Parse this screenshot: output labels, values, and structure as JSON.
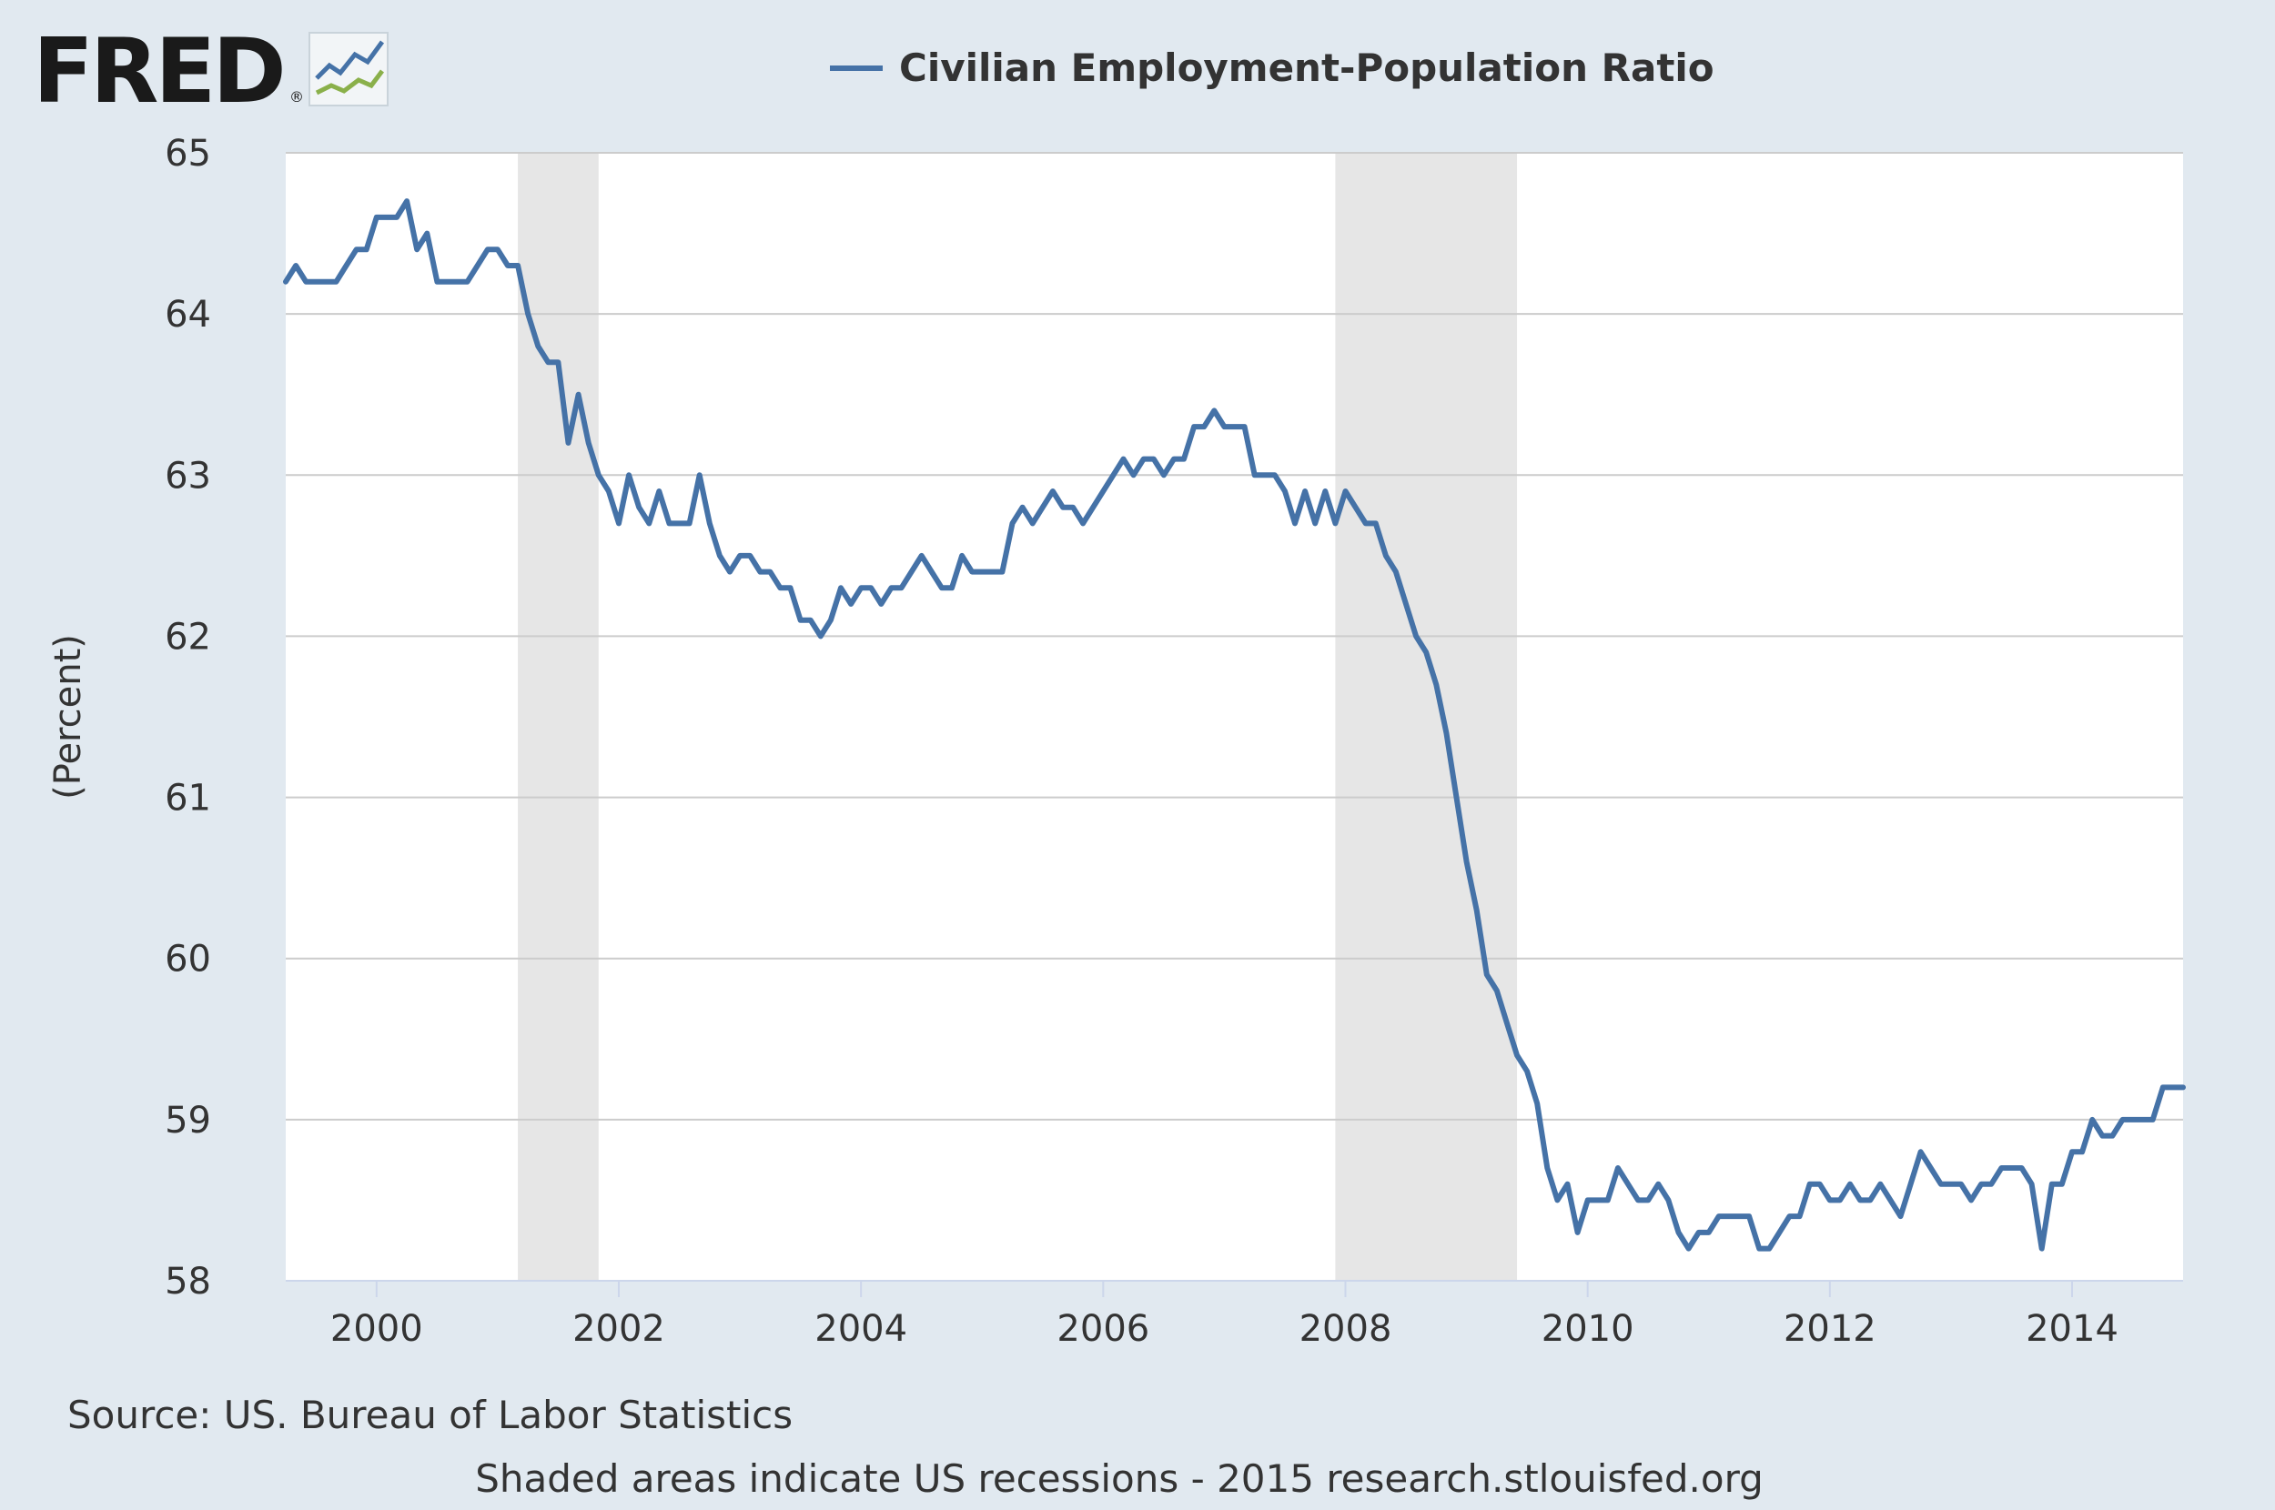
{
  "logo": {
    "text": "FRED",
    "registered": "®",
    "icon": "fred-sparkline-icon"
  },
  "source_text": "Source: US. Bureau of Labor Statistics",
  "footer_text": "Shaded areas indicate US recessions - 2015 research.stlouisfed.org",
  "colors": {
    "background": "#e1e9f0",
    "plot_bg": "#ffffff",
    "series": "#4572a7",
    "recession": "#e6e6e6",
    "grid": "#cccccc"
  },
  "chart_data": {
    "type": "line",
    "title": "",
    "xlabel": "",
    "ylabel": "(Percent)",
    "ylim": [
      58,
      65
    ],
    "xlim": [
      "1999-04",
      "2014-12"
    ],
    "y_ticks": [
      58,
      59,
      60,
      61,
      62,
      63,
      64,
      65
    ],
    "x_ticks": [
      "2000",
      "2002",
      "2004",
      "2006",
      "2008",
      "2010",
      "2012",
      "2014"
    ],
    "grid": true,
    "legend_position": "top",
    "recessions": [
      {
        "start": "2001-03",
        "end": "2001-11"
      },
      {
        "start": "2007-12",
        "end": "2009-06"
      }
    ],
    "series": [
      {
        "name": "Civilian Employment-Population Ratio",
        "start": "1999-04",
        "frequency": "monthly",
        "values": [
          64.2,
          64.3,
          64.2,
          64.2,
          64.2,
          64.2,
          64.3,
          64.4,
          64.4,
          64.6,
          64.6,
          64.6,
          64.7,
          64.4,
          64.5,
          64.2,
          64.2,
          64.2,
          64.2,
          64.3,
          64.4,
          64.4,
          64.3,
          64.3,
          64.0,
          63.8,
          63.7,
          63.7,
          63.2,
          63.5,
          63.2,
          63.0,
          62.9,
          62.7,
          63.0,
          62.8,
          62.7,
          62.9,
          62.7,
          62.7,
          62.7,
          63.0,
          62.7,
          62.5,
          62.4,
          62.5,
          62.5,
          62.4,
          62.4,
          62.3,
          62.3,
          62.1,
          62.1,
          62.0,
          62.1,
          62.3,
          62.2,
          62.3,
          62.3,
          62.2,
          62.3,
          62.3,
          62.4,
          62.5,
          62.4,
          62.3,
          62.3,
          62.5,
          62.4,
          62.4,
          62.4,
          62.4,
          62.7,
          62.8,
          62.7,
          62.8,
          62.9,
          62.8,
          62.8,
          62.7,
          62.8,
          62.9,
          63.0,
          63.1,
          63.0,
          63.1,
          63.1,
          63.0,
          63.1,
          63.1,
          63.3,
          63.3,
          63.4,
          63.3,
          63.3,
          63.3,
          63.0,
          63.0,
          63.0,
          62.9,
          62.7,
          62.9,
          62.7,
          62.9,
          62.7,
          62.9,
          62.8,
          62.7,
          62.7,
          62.5,
          62.4,
          62.2,
          62.0,
          61.9,
          61.7,
          61.4,
          61.0,
          60.6,
          60.3,
          59.9,
          59.8,
          59.6,
          59.4,
          59.3,
          59.1,
          58.7,
          58.5,
          58.6,
          58.3,
          58.5,
          58.5,
          58.5,
          58.7,
          58.6,
          58.5,
          58.5,
          58.6,
          58.5,
          58.3,
          58.2,
          58.3,
          58.3,
          58.4,
          58.4,
          58.4,
          58.4,
          58.2,
          58.2,
          58.3,
          58.4,
          58.4,
          58.6,
          58.6,
          58.5,
          58.5,
          58.6,
          58.5,
          58.5,
          58.6,
          58.5,
          58.4,
          58.6,
          58.8,
          58.7,
          58.6,
          58.6,
          58.6,
          58.5,
          58.6,
          58.6,
          58.7,
          58.7,
          58.7,
          58.6,
          58.2,
          58.6,
          58.6,
          58.8,
          58.8,
          59.0,
          58.9,
          58.9,
          59.0,
          59.0,
          59.0,
          59.0,
          59.2,
          59.2,
          59.2
        ]
      }
    ]
  }
}
